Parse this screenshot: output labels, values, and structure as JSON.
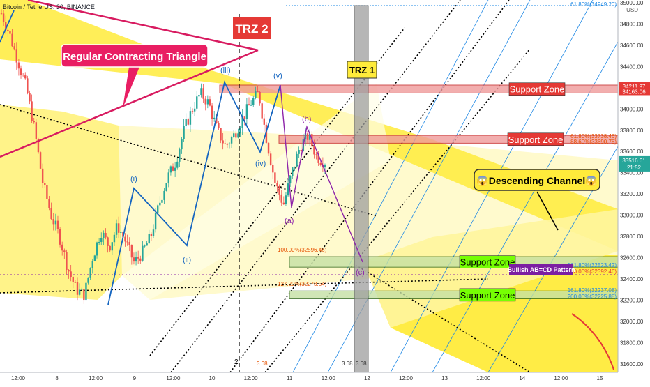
{
  "header": {
    "symbol_title": "Bitcoin / TetherUS, 30, BINANCE"
  },
  "price_axis": {
    "currency": "USDT",
    "ticks": [
      35000,
      34800,
      34600,
      34400,
      34000,
      33800,
      33600,
      33400,
      33200,
      33000,
      32800,
      32600,
      32400,
      32200,
      32000,
      31800,
      31600
    ],
    "badges": [
      {
        "text": "34211.97",
        "price": 34211.97,
        "color": "#e53935"
      },
      {
        "text": "34163.06",
        "price": 34163.06,
        "color": "#e53935"
      },
      {
        "text": "33516.61",
        "subtext": "21:52",
        "price": 33516.61,
        "color": "#26a69a"
      }
    ]
  },
  "time_axis": {
    "ticks": [
      "12:00",
      "8",
      "12:00",
      "9",
      "12:00",
      "10",
      "12:00",
      "11",
      "12:00",
      "12",
      "12:00",
      "13",
      "12:00",
      "14",
      "12:00",
      "15"
    ]
  },
  "annotations": {
    "triangle_label": "Regular Contracting Triangle",
    "trz2": "TRZ 2",
    "trz1": "TRZ 1",
    "support_zone_label": "Support Zone",
    "descending_channel": "😱Descending Channel😱",
    "pattern_label": "Bullish AB=CD Pattern",
    "wave_i": "(i)",
    "wave_ii": "(ii)",
    "wave_iii": "(iii)",
    "wave_iv": "(iv)",
    "wave_v": "(v)",
    "wave_a": "(a)",
    "wave_b": "(b)",
    "wave_c": "(c)",
    "wave_2": "2",
    "fib_top": "61.80%(34949.20)",
    "fib_b1": "61.80%(33738.46)",
    "fib_b2": "88.60%(33690.78)",
    "fib_100_low": "100.00%(32596.46)",
    "fib_161_a": "161.80%(32523.42)",
    "fib_100_b": "100.00%(32392.46)",
    "fib_127": "127.20%(32273.54)",
    "fib_161_b": "161.80%(32237.08)",
    "fib_200": "200.00%(32225.88)",
    "val_368_a": "3.68",
    "val_368_b": "3.68",
    "val_368_c": "3.68"
  },
  "colors": {
    "yellow": "#ffeb3b",
    "pale_yellow": "#fff9c4",
    "red_zone": "#ef9a9a",
    "red_label": "#e53935",
    "green_zone": "#c5e1a5",
    "green_label": "#76ff03",
    "candle_up": "#26a69a",
    "candle_down": "#ef5350",
    "wave_blue": "#1565c0",
    "wave_purple": "#8e24aa",
    "triangle_pink": "#d81b60",
    "pattern_purple": "#7b1fa2"
  },
  "chart_data": {
    "type": "candlestick",
    "symbol": "Bitcoin / TetherUS",
    "interval": "30",
    "exchange": "BINANCE",
    "y_range": [
      31520,
      35000
    ],
    "price_path_close": [
      34900,
      34700,
      34450,
      34200,
      33800,
      33300,
      33000,
      32800,
      32500,
      32300,
      32250,
      32600,
      32850,
      32700,
      32900,
      32750,
      32550,
      32650,
      32800,
      33100,
      33350,
      33500,
      33800,
      34000,
      34150,
      34050,
      33800,
      33650,
      33750,
      33900,
      34050,
      34150,
      33700,
      33300,
      33100,
      33400,
      33650,
      33750,
      33550,
      33500
    ],
    "last_price": 33516.61,
    "levels": [
      {
        "name": "Support Zone",
        "from": 34163.06,
        "to": 34211.97
      },
      {
        "name": "Support Zone",
        "from": 33690.78,
        "to": 33738.46
      },
      {
        "name": "Support Zone",
        "from": 32523.42,
        "to": 32596.46
      },
      {
        "name": "Support Zone",
        "from": 32225.88,
        "to": 32273.54
      }
    ],
    "fib_levels": [
      {
        "label": "61.80%",
        "value": 34949.2
      },
      {
        "label": "61.80%",
        "value": 33738.46
      },
      {
        "label": "88.60%",
        "value": 33690.78
      },
      {
        "label": "100.00%",
        "value": 32596.46
      },
      {
        "label": "161.80%",
        "value": 32523.42
      },
      {
        "label": "100.00%",
        "value": 32392.46
      },
      {
        "label": "127.20%",
        "value": 32273.54
      },
      {
        "label": "161.80%",
        "value": 32237.08
      },
      {
        "label": "200.00%",
        "value": 32225.88
      }
    ]
  }
}
